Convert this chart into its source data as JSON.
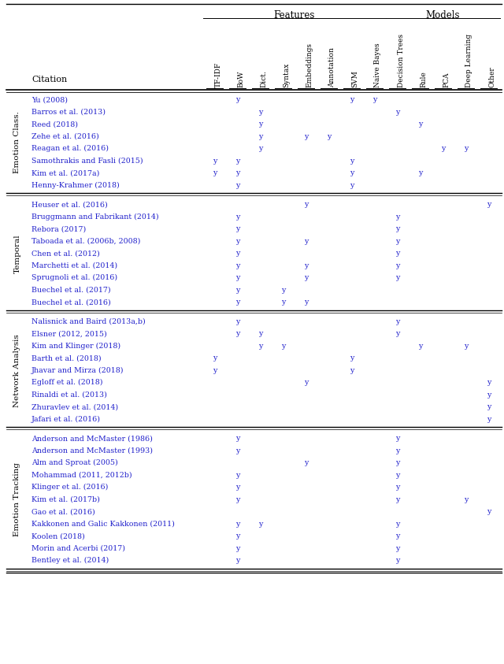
{
  "col_headers": [
    "TF-IDF",
    "BoW",
    "Dict.",
    "Syntax",
    "Embeddings",
    "Annotation",
    "SVM",
    "Naive Bayes",
    "Decision Trees",
    "Rule",
    "PCA",
    "Deep Learning",
    "Other"
  ],
  "features_group": "Features",
  "models_group": "Models",
  "row_groups": [
    {
      "label": "Emotion Class.",
      "rows": [
        {
          "citation": "Yu (2008)",
          "marks": [
            0,
            1,
            0,
            0,
            0,
            0,
            1,
            1,
            0,
            0,
            0,
            0,
            0
          ]
        },
        {
          "citation": "Barros et al. (2013)",
          "marks": [
            0,
            0,
            1,
            0,
            0,
            0,
            0,
            0,
            1,
            0,
            0,
            0,
            0
          ]
        },
        {
          "citation": "Reed (2018)",
          "marks": [
            0,
            0,
            1,
            0,
            0,
            0,
            0,
            0,
            0,
            1,
            0,
            0,
            0
          ]
        },
        {
          "citation": "Zehe et al. (2016)",
          "marks": [
            0,
            0,
            1,
            0,
            1,
            1,
            0,
            0,
            0,
            0,
            0,
            0,
            0
          ]
        },
        {
          "citation": "Reagan et al. (2016)",
          "marks": [
            0,
            0,
            1,
            0,
            0,
            0,
            0,
            0,
            0,
            0,
            1,
            1,
            0
          ]
        },
        {
          "citation": "Samothrakis and Fasli (2015)",
          "marks": [
            1,
            1,
            0,
            0,
            0,
            0,
            1,
            0,
            0,
            0,
            0,
            0,
            0
          ]
        },
        {
          "citation": "Kim et al. (2017a)",
          "marks": [
            1,
            1,
            0,
            0,
            0,
            0,
            1,
            0,
            0,
            1,
            0,
            0,
            0
          ]
        },
        {
          "citation": "Henny-Krahmer (2018)",
          "marks": [
            0,
            1,
            0,
            0,
            0,
            0,
            1,
            0,
            0,
            0,
            0,
            0,
            0
          ]
        }
      ]
    },
    {
      "label": "Temporal",
      "rows": [
        {
          "citation": "Heuser et al. (2016)",
          "marks": [
            0,
            0,
            0,
            0,
            1,
            0,
            0,
            0,
            0,
            0,
            0,
            0,
            1
          ]
        },
        {
          "citation": "Bruggmann and Fabrikant (2014)",
          "marks": [
            0,
            1,
            0,
            0,
            0,
            0,
            0,
            0,
            1,
            0,
            0,
            0,
            0
          ]
        },
        {
          "citation": "Rebora (2017)",
          "marks": [
            0,
            1,
            0,
            0,
            0,
            0,
            0,
            0,
            1,
            0,
            0,
            0,
            0
          ]
        },
        {
          "citation": "Taboada et al. (2006b, 2008)",
          "marks": [
            0,
            1,
            0,
            0,
            1,
            0,
            0,
            0,
            1,
            0,
            0,
            0,
            0
          ]
        },
        {
          "citation": "Chen et al. (2012)",
          "marks": [
            0,
            1,
            0,
            0,
            0,
            0,
            0,
            0,
            1,
            0,
            0,
            0,
            0
          ]
        },
        {
          "citation": "Marchetti et al. (2014)",
          "marks": [
            0,
            1,
            0,
            0,
            1,
            0,
            0,
            0,
            1,
            0,
            0,
            0,
            0
          ]
        },
        {
          "citation": "Sprugnoli et al. (2016)",
          "marks": [
            0,
            1,
            0,
            0,
            1,
            0,
            0,
            0,
            1,
            0,
            0,
            0,
            0
          ]
        },
        {
          "citation": "Buechel et al. (2017)",
          "marks": [
            0,
            1,
            0,
            1,
            0,
            0,
            0,
            0,
            0,
            0,
            0,
            0,
            0
          ]
        },
        {
          "citation": "Buechel et al. (2016)",
          "marks": [
            0,
            1,
            0,
            1,
            1,
            0,
            0,
            0,
            0,
            0,
            0,
            0,
            0
          ]
        }
      ]
    },
    {
      "label": "Network Analysis",
      "rows": [
        {
          "citation": "Nalisnick and Baird (2013a,b)",
          "marks": [
            0,
            1,
            0,
            0,
            0,
            0,
            0,
            0,
            1,
            0,
            0,
            0,
            0
          ]
        },
        {
          "citation": "Elsner (2012, 2015)",
          "marks": [
            0,
            1,
            1,
            0,
            0,
            0,
            0,
            0,
            1,
            0,
            0,
            0,
            0
          ]
        },
        {
          "citation": "Kim and Klinger (2018)",
          "marks": [
            0,
            0,
            1,
            1,
            0,
            0,
            0,
            0,
            0,
            1,
            0,
            1,
            0
          ]
        },
        {
          "citation": "Barth et al. (2018)",
          "marks": [
            1,
            0,
            0,
            0,
            0,
            0,
            1,
            0,
            0,
            0,
            0,
            0,
            0
          ]
        },
        {
          "citation": "Jhavar and Mirza (2018)",
          "marks": [
            1,
            0,
            0,
            0,
            0,
            0,
            1,
            0,
            0,
            0,
            0,
            0,
            0
          ]
        },
        {
          "citation": "Egloff et al. (2018)",
          "marks": [
            0,
            0,
            0,
            0,
            1,
            0,
            0,
            0,
            0,
            0,
            0,
            0,
            1
          ]
        },
        {
          "citation": "Rinaldi et al. (2013)",
          "marks": [
            0,
            0,
            0,
            0,
            0,
            0,
            0,
            0,
            0,
            0,
            0,
            0,
            1
          ]
        },
        {
          "citation": "Zhuravlev et al. (2014)",
          "marks": [
            0,
            0,
            0,
            0,
            0,
            0,
            0,
            0,
            0,
            0,
            0,
            0,
            1
          ]
        },
        {
          "citation": "Jafari et al. (2016)",
          "marks": [
            0,
            0,
            0,
            0,
            0,
            0,
            0,
            0,
            0,
            0,
            0,
            0,
            1
          ]
        }
      ]
    },
    {
      "label": "Emotion Tracking",
      "rows": [
        {
          "citation": "Anderson and McMaster (1986)",
          "marks": [
            0,
            1,
            0,
            0,
            0,
            0,
            0,
            0,
            1,
            0,
            0,
            0,
            0
          ]
        },
        {
          "citation": "Anderson and McMaster (1993)",
          "marks": [
            0,
            1,
            0,
            0,
            0,
            0,
            0,
            0,
            1,
            0,
            0,
            0,
            0
          ]
        },
        {
          "citation": "Alm and Sproat (2005)",
          "marks": [
            0,
            0,
            0,
            0,
            1,
            0,
            0,
            0,
            1,
            0,
            0,
            0,
            0
          ]
        },
        {
          "citation": "Mohammad (2011, 2012b)",
          "marks": [
            0,
            1,
            0,
            0,
            0,
            0,
            0,
            0,
            1,
            0,
            0,
            0,
            0
          ]
        },
        {
          "citation": "Klinger et al. (2016)",
          "marks": [
            0,
            1,
            0,
            0,
            0,
            0,
            0,
            0,
            1,
            0,
            0,
            0,
            0
          ]
        },
        {
          "citation": "Kim et al. (2017b)",
          "marks": [
            0,
            1,
            0,
            0,
            0,
            0,
            0,
            0,
            1,
            0,
            0,
            1,
            0
          ]
        },
        {
          "citation": "Gao et al. (2016)",
          "marks": [
            0,
            0,
            0,
            0,
            0,
            0,
            0,
            0,
            0,
            0,
            0,
            0,
            1
          ]
        },
        {
          "citation": "Kakkonen and Galic Kakkonen (2011)",
          "marks": [
            0,
            1,
            1,
            0,
            0,
            0,
            0,
            0,
            1,
            0,
            0,
            0,
            0
          ]
        },
        {
          "citation": "Koolen (2018)",
          "marks": [
            0,
            1,
            0,
            0,
            0,
            0,
            0,
            0,
            1,
            0,
            0,
            0,
            0
          ]
        },
        {
          "citation": "Morin and Acerbi (2017)",
          "marks": [
            0,
            1,
            0,
            0,
            0,
            0,
            0,
            0,
            1,
            0,
            0,
            0,
            0
          ]
        },
        {
          "citation": "Bentley et al. (2014)",
          "marks": [
            0,
            1,
            0,
            0,
            0,
            0,
            0,
            0,
            1,
            0,
            0,
            0,
            0
          ]
        }
      ]
    }
  ],
  "text_color": "#2222cc",
  "header_color": "#000000",
  "group_label_color": "#000000",
  "bg_color": "#ffffff",
  "line_color": "#000000"
}
